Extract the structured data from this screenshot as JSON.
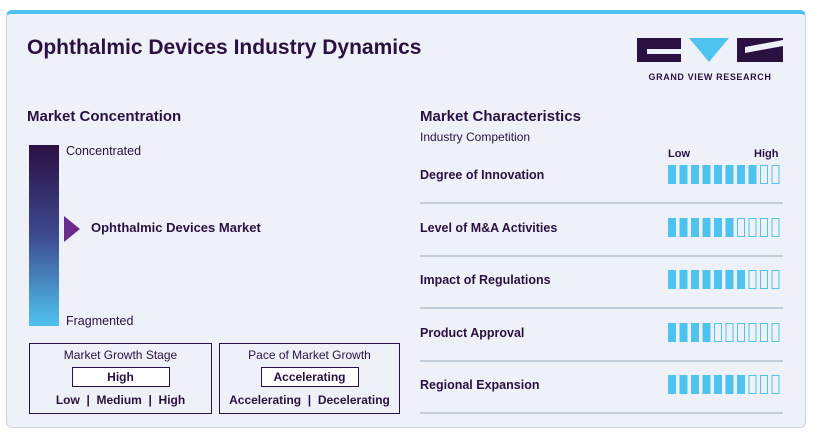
{
  "header": {
    "title": "Ophthalmic Devices Industry Dynamics",
    "logo_text": "GRAND VIEW RESEARCH"
  },
  "market_concentration": {
    "heading": "Market Concentration",
    "top_label": "Concentrated",
    "bottom_label": "Fragmented",
    "marker_label": "Ophthalmic Devices Market",
    "marker_level": 0.45
  },
  "growth_stage": {
    "title": "Market Growth Stage",
    "value": "High",
    "options": "Low  |  Medium  |  High"
  },
  "growth_pace": {
    "title": "Pace of Market Growth",
    "value": "Accelerating",
    "options": "Accelerating  |  Decelerating"
  },
  "characteristics": {
    "heading": "Market Characteristics",
    "subheading": "Industry Competition",
    "low_label": "Low",
    "high_label": "High",
    "total_segments": 10,
    "rows": [
      {
        "label": "Degree of Innovation",
        "filled": 8
      },
      {
        "label": "Level of M&A Activities",
        "filled": 6
      },
      {
        "label": "Impact of Regulations",
        "filled": 7
      },
      {
        "label": "Product Approval",
        "filled": 4
      },
      {
        "label": "Regional Expansion",
        "filled": 7
      }
    ]
  },
  "colors": {
    "primary": "#2b1042",
    "accent": "#4fc3f0",
    "background": "#eef2f8"
  }
}
